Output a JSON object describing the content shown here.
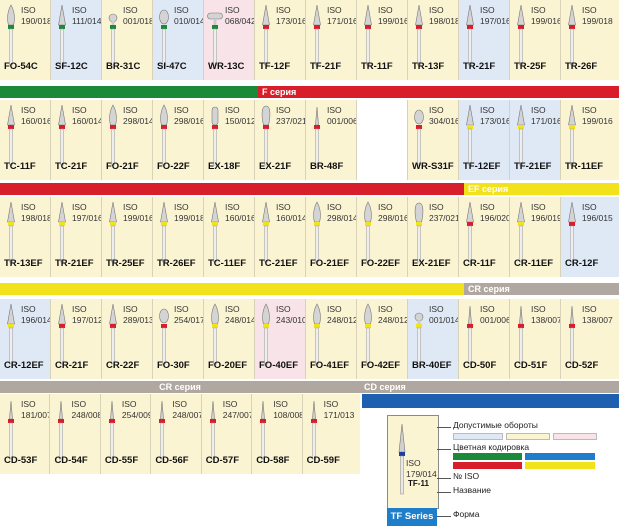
{
  "rows": [
    [
      {
        "iso": "ISO\n190/018",
        "code": "FO-54C",
        "bg": "#fbf4d3",
        "band": "#1a8a3a",
        "shape": "flame"
      },
      {
        "iso": "ISO\n111/014",
        "code": "SF-12C",
        "bg": "#dfe8f5",
        "band": "#1a8a3a",
        "shape": "taper"
      },
      {
        "iso": "ISO\n001/018",
        "code": "BR-31C",
        "bg": "#fbf4d3",
        "band": "#1a8a3a",
        "shape": "round"
      },
      {
        "iso": "ISO\n010/014",
        "code": "SI-47C",
        "bg": "#dfe8f5",
        "band": "#1a8a3a",
        "shape": "bud"
      },
      {
        "iso": "ISO\n068/042",
        "code": "WR-13C",
        "bg": "#f8e4e8",
        "band": "#1a8a3a",
        "shape": "wheel"
      },
      {
        "iso": "ISO\n173/016",
        "code": "TF-12F",
        "bg": "#fbf4d3",
        "band": "#d81e2a",
        "shape": "taper"
      },
      {
        "iso": "ISO\n171/016",
        "code": "TF-21F",
        "bg": "#fbf4d3",
        "band": "#d81e2a",
        "shape": "taper"
      },
      {
        "iso": "ISO\n199/016",
        "code": "TR-11F",
        "bg": "#fbf4d3",
        "band": "#d81e2a",
        "shape": "taper"
      },
      {
        "iso": "ISO\n198/018",
        "code": "TR-13F",
        "bg": "#fbf4d3",
        "band": "#d81e2a",
        "shape": "taper"
      },
      {
        "iso": "ISO\n197/016",
        "code": "TR-21F",
        "bg": "#dfe8f5",
        "band": "#d81e2a",
        "shape": "taper"
      },
      {
        "iso": "ISO\n199/016",
        "code": "TR-25F",
        "bg": "#fbf4d3",
        "band": "#d81e2a",
        "shape": "taper"
      },
      {
        "iso": "ISO\n199/018",
        "code": "TR-26F",
        "bg": "#fbf4d3",
        "band": "#d81e2a",
        "shape": "taper"
      }
    ],
    [
      {
        "iso": "ISO\n160/016",
        "code": "TC-11F",
        "bg": "#fbf4d3",
        "band": "#d81e2a",
        "shape": "taper"
      },
      {
        "iso": "ISO\n160/014",
        "code": "TC-21F",
        "bg": "#fbf4d3",
        "band": "#d81e2a",
        "shape": "taper"
      },
      {
        "iso": "ISO\n298/014",
        "code": "FO-21F",
        "bg": "#fbf4d3",
        "band": "#d81e2a",
        "shape": "flame"
      },
      {
        "iso": "ISO\n298/016",
        "code": "FO-22F",
        "bg": "#fbf4d3",
        "band": "#d81e2a",
        "shape": "flame"
      },
      {
        "iso": "ISO\n150/012",
        "code": "EX-18F",
        "bg": "#fbf4d3",
        "band": "#d81e2a",
        "shape": "cyl"
      },
      {
        "iso": "ISO\n237/021",
        "code": "EX-21F",
        "bg": "#fbf4d3",
        "band": "#d81e2a",
        "shape": "pear"
      },
      {
        "iso": "ISO\n001/006",
        "code": "BR-48F",
        "bg": "#fbf4d3",
        "band": "#d81e2a",
        "shape": "needle"
      },
      {
        "blank": true
      },
      {
        "iso": "ISO\n304/016",
        "code": "WR-S31F",
        "bg": "#fbf4d3",
        "band": "#d81e2a",
        "shape": "bud"
      },
      {
        "iso": "ISO\n173/016",
        "code": "TF-12EF",
        "bg": "#dfe8f5",
        "band": "#f2e21b",
        "shape": "taper"
      },
      {
        "iso": "ISO\n171/016",
        "code": "TF-21EF",
        "bg": "#dfe8f5",
        "band": "#f2e21b",
        "shape": "taper"
      },
      {
        "iso": "ISO\n199/016",
        "code": "TR-11EF",
        "bg": "#fbf4d3",
        "band": "#f2e21b",
        "shape": "taper"
      }
    ],
    [
      {
        "iso": "ISO\n198/018",
        "code": "TR-13EF",
        "bg": "#fbf4d3",
        "band": "#f2e21b",
        "shape": "taper"
      },
      {
        "iso": "ISO\n197/016",
        "code": "TR-21EF",
        "bg": "#fbf4d3",
        "band": "#f2e21b",
        "shape": "taper"
      },
      {
        "iso": "ISO\n199/016",
        "code": "TR-25EF",
        "bg": "#fbf4d3",
        "band": "#f2e21b",
        "shape": "taper"
      },
      {
        "iso": "ISO\n199/018",
        "code": "TR-26EF",
        "bg": "#fbf4d3",
        "band": "#f2e21b",
        "shape": "taper"
      },
      {
        "iso": "ISO\n160/016",
        "code": "TC-11EF",
        "bg": "#fbf4d3",
        "band": "#f2e21b",
        "shape": "taper"
      },
      {
        "iso": "ISO\n160/014",
        "code": "TC-21EF",
        "bg": "#fbf4d3",
        "band": "#f2e21b",
        "shape": "taper"
      },
      {
        "iso": "ISO\n298/014",
        "code": "FO-21EF",
        "bg": "#fbf4d3",
        "band": "#f2e21b",
        "shape": "flame"
      },
      {
        "iso": "ISO\n298/016",
        "code": "FO-22EF",
        "bg": "#fbf4d3",
        "band": "#f2e21b",
        "shape": "flame"
      },
      {
        "iso": "ISO\n237/021",
        "code": "EX-21EF",
        "bg": "#fbf4d3",
        "band": "#f2e21b",
        "shape": "pear"
      },
      {
        "iso": "ISO\n196/020",
        "code": "CR-11F",
        "bg": "#fbf4d3",
        "band": "#d81e2a",
        "shape": "taper"
      },
      {
        "iso": "ISO\n196/019",
        "code": "CR-11EF",
        "bg": "#fbf4d3",
        "band": "#f2e21b",
        "shape": "taper"
      },
      {
        "iso": "ISO\n196/015",
        "code": "CR-12F",
        "bg": "#dfe8f5",
        "band": "#d81e2a",
        "shape": "taper"
      }
    ],
    [
      {
        "iso": "ISO\n196/014",
        "code": "CR-12EF",
        "bg": "#dfe8f5",
        "band": "#f2e21b",
        "shape": "taper"
      },
      {
        "iso": "ISO\n197/012",
        "code": "CR-21F",
        "bg": "#fbf4d3",
        "band": "#d81e2a",
        "shape": "taper"
      },
      {
        "iso": "ISO\n289/013",
        "code": "CR-22F",
        "bg": "#fbf4d3",
        "band": "#d81e2a",
        "shape": "taper"
      },
      {
        "iso": "ISO\n254/017",
        "code": "FO-30F",
        "bg": "#fbf4d3",
        "band": "#d81e2a",
        "shape": "bud"
      },
      {
        "iso": "ISO\n248/014",
        "code": "FO-20EF",
        "bg": "#fbf4d3",
        "band": "#f2e21b",
        "shape": "flame"
      },
      {
        "iso": "ISO\n243/010",
        "code": "FO-40EF",
        "bg": "#f8e4e8",
        "band": "#f2e21b",
        "shape": "flame"
      },
      {
        "iso": "ISO\n248/012",
        "code": "FO-41EF",
        "bg": "#fbf4d3",
        "band": "#f2e21b",
        "shape": "flame"
      },
      {
        "iso": "ISO\n248/012",
        "code": "FO-42EF",
        "bg": "#fbf4d3",
        "band": "#f2e21b",
        "shape": "flame"
      },
      {
        "iso": "ISO\n001/014",
        "code": "BR-40EF",
        "bg": "#dfe8f5",
        "band": "#f2e21b",
        "shape": "round"
      },
      {
        "iso": "ISO\n001/006",
        "code": "CD-50F",
        "bg": "#fbf4d3",
        "band": "#d81e2a",
        "shape": "needle"
      },
      {
        "iso": "ISO\n138/007",
        "code": "CD-51F",
        "bg": "#fbf4d3",
        "band": "#d81e2a",
        "shape": "needle"
      },
      {
        "iso": "ISO\n138/007",
        "code": "CD-52F",
        "bg": "#fbf4d3",
        "band": "#d81e2a",
        "shape": "needle"
      }
    ],
    [
      {
        "iso": "ISO\n181/007",
        "code": "CD-53F",
        "bg": "#fbf4d3",
        "band": "#d81e2a",
        "shape": "needle"
      },
      {
        "iso": "ISO\n248/008",
        "code": "CD-54F",
        "bg": "#fbf4d3",
        "band": "#d81e2a",
        "shape": "needle"
      },
      {
        "iso": "ISO\n254/009",
        "code": "CD-55F",
        "bg": "#fbf4d3",
        "band": "#d81e2a",
        "shape": "needle"
      },
      {
        "iso": "ISO\n248/007",
        "code": "CD-56F",
        "bg": "#fbf4d3",
        "band": "#d81e2a",
        "shape": "needle"
      },
      {
        "iso": "ISO\n247/007",
        "code": "CD-57F",
        "bg": "#fbf4d3",
        "band": "#d81e2a",
        "shape": "needle"
      },
      {
        "iso": "ISO\n108/008",
        "code": "CD-58F",
        "bg": "#fbf4d3",
        "band": "#d81e2a",
        "shape": "needle"
      },
      {
        "iso": "ISO\n171/013",
        "code": "CD-59F",
        "bg": "#fbf4d3",
        "band": "#d81e2a",
        "shape": "needle"
      }
    ]
  ],
  "bands": [
    {
      "segments": [
        {
          "color": "#1a8a3a",
          "label": ""
        },
        {
          "color": "#d81e2a",
          "label": "F серия"
        }
      ]
    },
    {
      "segments": [
        {
          "color": "#d81e2a",
          "label": ""
        },
        {
          "color": "#f2e21b",
          "label": "EF серия"
        }
      ]
    },
    {
      "segments": [
        {
          "color": "#f2e21b",
          "label": ""
        },
        {
          "color": "#b0a8a0",
          "label": "CR серия"
        }
      ]
    },
    {
      "segments": [
        {
          "color": "#b0a8a0",
          "label": "CR серия"
        },
        {
          "color": "#b0a8a0",
          "label": "CD серия"
        }
      ]
    }
  ],
  "legend": {
    "rpm_label": "Допустимые обороты",
    "color_code_label": "Цветная кодировка",
    "iso_label": "№ ISO",
    "name_label": "Название",
    "shape_label": "Форма",
    "sample_iso": "ISO\n179/014",
    "sample_code": "TF-11",
    "series_badge": "TF Series",
    "rpm_colors": [
      "#dfe8f5",
      "#fbf4d3",
      "#f8e4e8"
    ],
    "code_colors": [
      "#1a8a3a",
      "#1f7ec9",
      "#d81e2a",
      "#f2e21b"
    ]
  }
}
